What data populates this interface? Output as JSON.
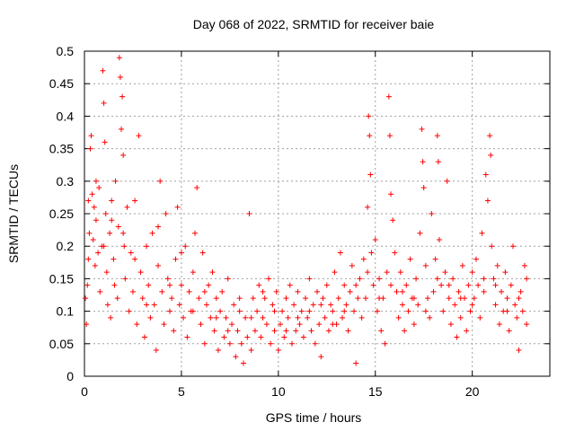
{
  "chart_data": {
    "type": "scatter",
    "title": "Day 068 of 2022, SRMTID for receiver baie",
    "xlabel": "GPS time / hours",
    "ylabel": "SRMTID / TECUs",
    "xlim": [
      0,
      24
    ],
    "ylim": [
      0,
      0.5
    ],
    "xticks": [
      0,
      5,
      10,
      15,
      20
    ],
    "yticks": [
      0,
      0.05,
      0.1,
      0.15,
      0.2,
      0.25,
      0.3,
      0.35,
      0.4,
      0.45,
      0.5
    ],
    "grid": true,
    "marker": "+",
    "color": "#ff0000",
    "series": [
      {
        "name": "SRMTID",
        "points": [
          [
            0.05,
            0.12
          ],
          [
            0.1,
            0.08
          ],
          [
            0.15,
            0.14
          ],
          [
            0.2,
            0.18
          ],
          [
            0.25,
            0.22
          ],
          [
            0.3,
            0.35
          ],
          [
            0.35,
            0.37
          ],
          [
            0.4,
            0.28
          ],
          [
            0.45,
            0.21
          ],
          [
            0.5,
            0.26
          ],
          [
            0.55,
            0.17
          ],
          [
            0.6,
            0.24
          ],
          [
            0.7,
            0.19
          ],
          [
            0.75,
            0.29
          ],
          [
            0.8,
            0.13
          ],
          [
            0.9,
            0.2
          ],
          [
            0.95,
            0.47
          ],
          [
            1.0,
            0.42
          ],
          [
            1.05,
            0.36
          ],
          [
            1.1,
            0.25
          ],
          [
            1.15,
            0.16
          ],
          [
            1.2,
            0.11
          ],
          [
            1.3,
            0.22
          ],
          [
            1.35,
            0.09
          ],
          [
            1.4,
            0.27
          ],
          [
            1.5,
            0.18
          ],
          [
            1.55,
            0.14
          ],
          [
            1.6,
            0.3
          ],
          [
            1.7,
            0.12
          ],
          [
            1.75,
            0.23
          ],
          [
            1.8,
            0.49
          ],
          [
            1.85,
            0.46
          ],
          [
            1.9,
            0.38
          ],
          [
            1.95,
            0.43
          ],
          [
            2.0,
            0.34
          ],
          [
            2.05,
            0.2
          ],
          [
            2.1,
            0.15
          ],
          [
            2.2,
            0.26
          ],
          [
            2.3,
            0.1
          ],
          [
            2.4,
            0.19
          ],
          [
            2.5,
            0.13
          ],
          [
            2.6,
            0.27
          ],
          [
            2.7,
            0.08
          ],
          [
            2.8,
            0.37
          ],
          [
            2.9,
            0.16
          ],
          [
            3.0,
            0.12
          ],
          [
            3.1,
            0.06
          ],
          [
            3.2,
            0.2
          ],
          [
            3.3,
            0.14
          ],
          [
            3.4,
            0.09
          ],
          [
            3.5,
            0.22
          ],
          [
            3.6,
            0.11
          ],
          [
            3.7,
            0.04
          ],
          [
            3.8,
            0.17
          ],
          [
            3.9,
            0.3
          ],
          [
            4.0,
            0.13
          ],
          [
            4.1,
            0.08
          ],
          [
            4.2,
            0.25
          ],
          [
            4.3,
            0.15
          ],
          [
            4.4,
            0.1
          ],
          [
            4.5,
            0.12
          ],
          [
            4.6,
            0.07
          ],
          [
            4.7,
            0.18
          ],
          [
            4.8,
            0.26
          ],
          [
            4.9,
            0.11
          ],
          [
            5.0,
            0.14
          ],
          [
            5.1,
            0.09
          ],
          [
            5.2,
            0.2
          ],
          [
            5.3,
            0.06
          ],
          [
            5.4,
            0.13
          ],
          [
            5.5,
            0.1
          ],
          [
            5.6,
            0.16
          ],
          [
            5.7,
            0.22
          ],
          [
            5.8,
            0.29
          ],
          [
            5.9,
            0.12
          ],
          [
            6.0,
            0.08
          ],
          [
            6.1,
            0.19
          ],
          [
            6.2,
            0.05
          ],
          [
            6.3,
            0.11
          ],
          [
            6.4,
            0.14
          ],
          [
            6.5,
            0.09
          ],
          [
            6.6,
            0.16
          ],
          [
            6.7,
            0.07
          ],
          [
            6.8,
            0.12
          ],
          [
            6.9,
            0.04
          ],
          [
            7.0,
            0.1
          ],
          [
            7.1,
            0.13
          ],
          [
            7.2,
            0.06
          ],
          [
            7.3,
            0.09
          ],
          [
            7.4,
            0.15
          ],
          [
            7.5,
            0.05
          ],
          [
            7.6,
            0.08
          ],
          [
            7.7,
            0.11
          ],
          [
            7.8,
            0.03
          ],
          [
            7.9,
            0.07
          ],
          [
            8.0,
            0.1
          ],
          [
            8.1,
            0.05
          ],
          [
            8.2,
            0.02
          ],
          [
            8.3,
            0.09
          ],
          [
            8.4,
            0.06
          ],
          [
            8.5,
            0.25
          ],
          [
            8.6,
            0.04
          ],
          [
            8.7,
            0.12
          ],
          [
            8.8,
            0.07
          ],
          [
            8.9,
            0.1
          ],
          [
            9.0,
            0.14
          ],
          [
            9.1,
            0.06
          ],
          [
            9.2,
            0.09
          ],
          [
            9.3,
            0.12
          ],
          [
            9.4,
            0.08
          ],
          [
            9.5,
            0.15
          ],
          [
            9.6,
            0.05
          ],
          [
            9.7,
            0.11
          ],
          [
            9.8,
            0.07
          ],
          [
            9.9,
            0.13
          ],
          [
            10.0,
            0.04
          ],
          [
            10.1,
            0.08
          ],
          [
            10.2,
            0.1
          ],
          [
            10.3,
            0.06
          ],
          [
            10.4,
            0.12
          ],
          [
            10.5,
            0.09
          ],
          [
            10.6,
            0.14
          ],
          [
            10.7,
            0.05
          ],
          [
            10.8,
            0.11
          ],
          [
            10.9,
            0.07
          ],
          [
            11.0,
            0.13
          ],
          [
            11.1,
            0.08
          ],
          [
            11.2,
            0.1
          ],
          [
            11.3,
            0.06
          ],
          [
            11.4,
            0.12
          ],
          [
            11.5,
            0.09
          ],
          [
            11.6,
            0.15
          ],
          [
            11.7,
            0.07
          ],
          [
            11.8,
            0.11
          ],
          [
            11.9,
            0.05
          ],
          [
            12.0,
            0.13
          ],
          [
            12.1,
            0.08
          ],
          [
            12.2,
            0.03
          ],
          [
            12.3,
            0.12
          ],
          [
            12.4,
            0.09
          ],
          [
            12.5,
            0.14
          ],
          [
            12.6,
            0.07
          ],
          [
            12.7,
            0.11
          ],
          [
            12.8,
            0.1
          ],
          [
            12.9,
            0.16
          ],
          [
            13.0,
            0.08
          ],
          [
            13.1,
            0.12
          ],
          [
            13.2,
            0.19
          ],
          [
            13.3,
            0.09
          ],
          [
            13.4,
            0.14
          ],
          [
            13.5,
            0.11
          ],
          [
            13.6,
            0.07
          ],
          [
            13.7,
            0.13
          ],
          [
            13.8,
            0.17
          ],
          [
            13.9,
            0.1
          ],
          [
            14.0,
            0.02
          ],
          [
            14.1,
            0.12
          ],
          [
            14.2,
            0.15
          ],
          [
            14.3,
            0.09
          ],
          [
            14.4,
            0.18
          ],
          [
            14.5,
            0.12
          ],
          [
            14.6,
            0.26
          ],
          [
            14.65,
            0.4
          ],
          [
            14.7,
            0.37
          ],
          [
            14.75,
            0.31
          ],
          [
            14.8,
            0.19
          ],
          [
            14.9,
            0.14
          ],
          [
            15.0,
            0.21
          ],
          [
            15.1,
            0.1
          ],
          [
            15.2,
            0.15
          ],
          [
            15.3,
            0.07
          ],
          [
            15.4,
            0.12
          ],
          [
            15.5,
            0.05
          ],
          [
            15.6,
            0.16
          ],
          [
            15.7,
            0.43
          ],
          [
            15.75,
            0.37
          ],
          [
            15.8,
            0.28
          ],
          [
            15.9,
            0.24
          ],
          [
            16.0,
            0.19
          ],
          [
            16.1,
            0.13
          ],
          [
            16.2,
            0.09
          ],
          [
            16.3,
            0.16
          ],
          [
            16.4,
            0.11
          ],
          [
            16.5,
            0.07
          ],
          [
            16.6,
            0.14
          ],
          [
            16.7,
            0.1
          ],
          [
            16.8,
            0.18
          ],
          [
            16.9,
            0.12
          ],
          [
            17.0,
            0.08
          ],
          [
            17.1,
            0.15
          ],
          [
            17.2,
            0.11
          ],
          [
            17.3,
            0.22
          ],
          [
            17.4,
            0.38
          ],
          [
            17.45,
            0.33
          ],
          [
            17.5,
            0.29
          ],
          [
            17.6,
            0.17
          ],
          [
            17.7,
            0.12
          ],
          [
            17.8,
            0.09
          ],
          [
            17.9,
            0.25
          ],
          [
            18.0,
            0.13
          ],
          [
            18.1,
            0.18
          ],
          [
            18.2,
            0.37
          ],
          [
            18.25,
            0.33
          ],
          [
            18.3,
            0.21
          ],
          [
            18.4,
            0.14
          ],
          [
            18.5,
            0.1
          ],
          [
            18.6,
            0.16
          ],
          [
            18.7,
            0.3
          ],
          [
            18.8,
            0.12
          ],
          [
            18.9,
            0.08
          ],
          [
            19.0,
            0.15
          ],
          [
            19.1,
            0.11
          ],
          [
            19.2,
            0.06
          ],
          [
            19.3,
            0.13
          ],
          [
            19.4,
            0.09
          ],
          [
            19.5,
            0.17
          ],
          [
            19.6,
            0.12
          ],
          [
            19.7,
            0.07
          ],
          [
            19.8,
            0.14
          ],
          [
            19.9,
            0.1
          ],
          [
            20.0,
            0.16
          ],
          [
            20.1,
            0.12
          ],
          [
            20.2,
            0.18
          ],
          [
            20.3,
            0.14
          ],
          [
            20.4,
            0.09
          ],
          [
            20.5,
            0.22
          ],
          [
            20.6,
            0.13
          ],
          [
            20.7,
            0.31
          ],
          [
            20.8,
            0.27
          ],
          [
            20.9,
            0.37
          ],
          [
            20.95,
            0.34
          ],
          [
            21.0,
            0.2
          ],
          [
            21.1,
            0.15
          ],
          [
            21.2,
            0.11
          ],
          [
            21.3,
            0.17
          ],
          [
            21.4,
            0.08
          ],
          [
            21.5,
            0.13
          ],
          [
            21.6,
            0.1
          ],
          [
            21.7,
            0.16
          ],
          [
            21.8,
            0.12
          ],
          [
            21.9,
            0.07
          ],
          [
            22.0,
            0.14
          ],
          [
            22.1,
            0.2
          ],
          [
            22.2,
            0.11
          ],
          [
            22.3,
            0.09
          ],
          [
            22.4,
            0.04
          ],
          [
            22.5,
            0.13
          ],
          [
            22.6,
            0.1
          ],
          [
            22.7,
            0.17
          ],
          [
            22.8,
            0.08
          ],
          [
            0.2,
            0.27
          ],
          [
            0.6,
            0.3
          ],
          [
            1.0,
            0.2
          ],
          [
            1.4,
            0.24
          ],
          [
            2.0,
            0.22
          ],
          [
            2.6,
            0.18
          ],
          [
            3.2,
            0.11
          ],
          [
            3.8,
            0.23
          ],
          [
            4.4,
            0.14
          ],
          [
            5.0,
            0.19
          ],
          [
            5.6,
            0.1
          ],
          [
            6.2,
            0.13
          ],
          [
            6.8,
            0.09
          ],
          [
            7.4,
            0.07
          ],
          [
            8.0,
            0.12
          ],
          [
            8.6,
            0.09
          ],
          [
            9.2,
            0.13
          ],
          [
            9.8,
            0.1
          ],
          [
            10.4,
            0.07
          ],
          [
            11.0,
            0.09
          ],
          [
            11.6,
            0.1
          ],
          [
            12.2,
            0.11
          ],
          [
            12.8,
            0.08
          ],
          [
            13.4,
            0.1
          ],
          [
            14.0,
            0.14
          ],
          [
            14.6,
            0.16
          ],
          [
            15.2,
            0.12
          ],
          [
            15.8,
            0.14
          ],
          [
            16.4,
            0.13
          ],
          [
            17.0,
            0.12
          ],
          [
            17.6,
            0.1
          ],
          [
            18.2,
            0.15
          ],
          [
            18.8,
            0.14
          ],
          [
            19.4,
            0.12
          ],
          [
            20.0,
            0.11
          ],
          [
            20.6,
            0.15
          ],
          [
            21.2,
            0.14
          ],
          [
            21.8,
            0.1
          ],
          [
            22.4,
            0.12
          ],
          [
            22.8,
            0.15
          ]
        ]
      }
    ]
  }
}
